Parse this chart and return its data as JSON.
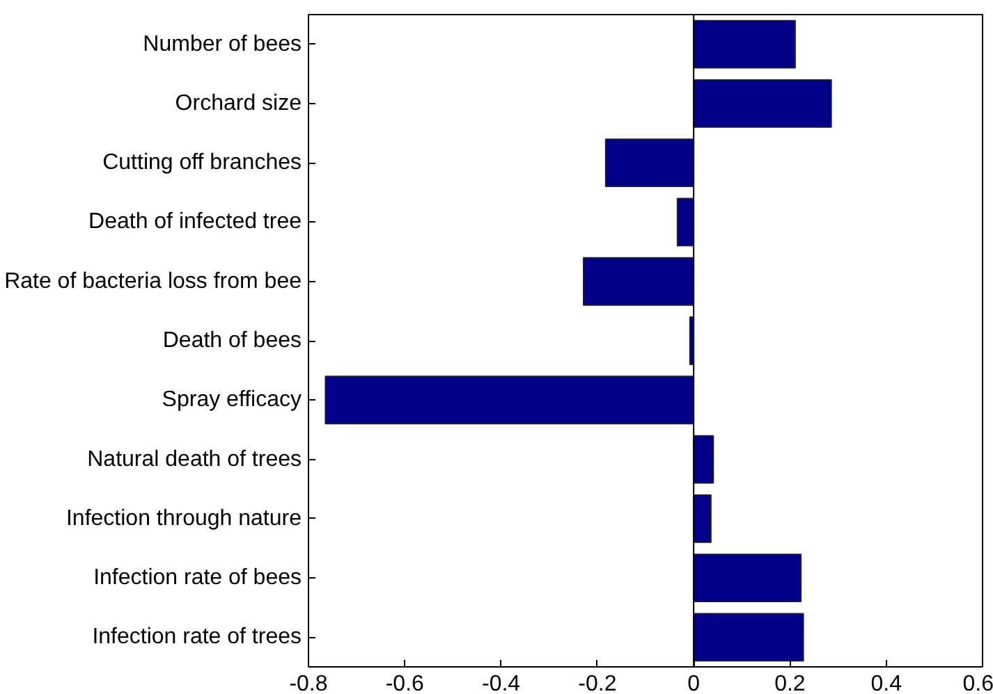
{
  "chart_data": {
    "type": "bar",
    "orientation": "horizontal",
    "categories": [
      "Number of bees",
      "Orchard size",
      "Cutting off branches",
      "Death of infected tree",
      "Rate of bacteria loss from bee",
      "Death of bees",
      "Spray efficacy",
      "Natural death of trees",
      "Infection through nature",
      "Infection rate of bees",
      "Infection rate of trees"
    ],
    "values": [
      0.211,
      0.286,
      -0.183,
      -0.034,
      -0.229,
      -0.008,
      -0.765,
      0.041,
      0.036,
      0.223,
      0.228
    ],
    "color": "#00008b",
    "xlim": [
      -0.8,
      0.6
    ],
    "xticks": [
      -0.8,
      -0.6,
      -0.4,
      -0.2,
      0,
      0.2,
      0.4,
      0.6
    ]
  }
}
